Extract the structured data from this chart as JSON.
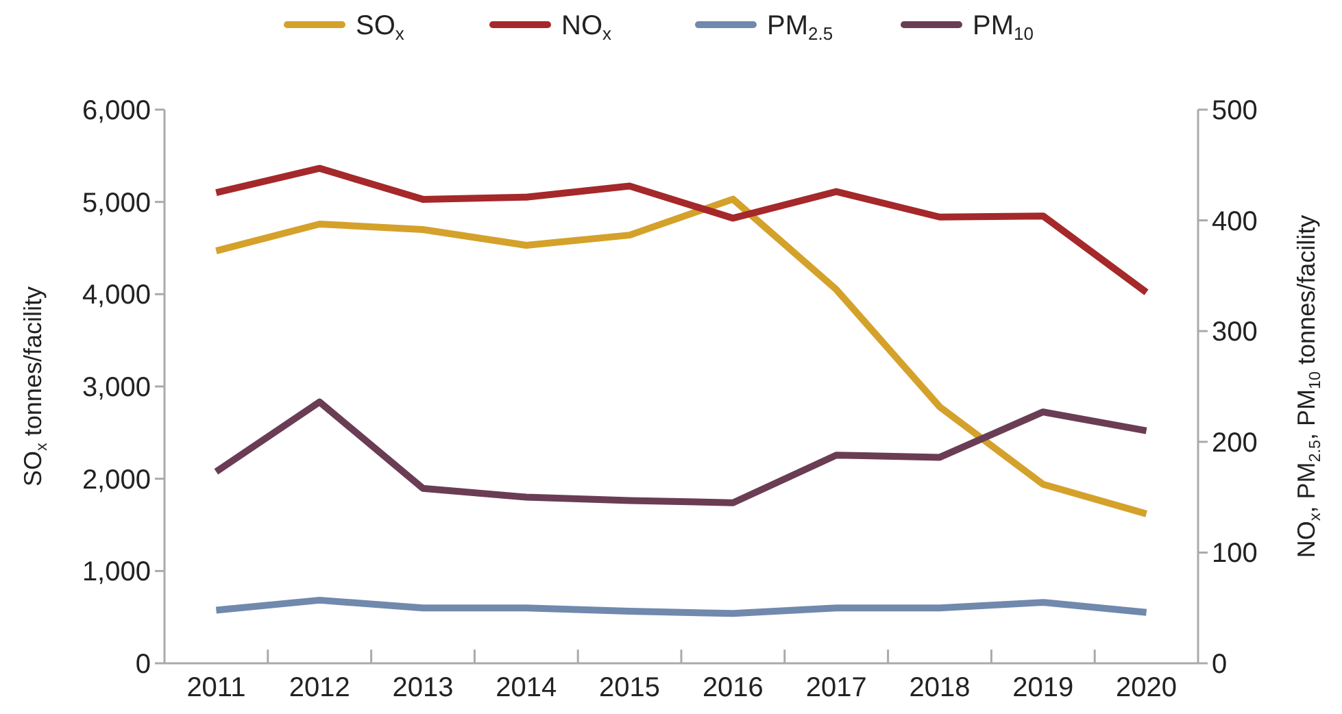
{
  "chart_data": {
    "type": "line",
    "categories": [
      "2011",
      "2012",
      "2013",
      "2014",
      "2015",
      "2016",
      "2017",
      "2018",
      "2019",
      "2020"
    ],
    "ylabel": "SO$_{x}$ tonnes/facility",
    "y2label": "NO$_{x}$, PM$_{2.5}$, PM$_{10}$ tonnes/facility",
    "ylim": [
      0,
      6000
    ],
    "yticks": [
      {
        "value": 0,
        "label": "0"
      },
      {
        "value": 1000,
        "label": "1,000"
      },
      {
        "value": 2000,
        "label": "2,000"
      },
      {
        "value": 3000,
        "label": "3,000"
      },
      {
        "value": 4000,
        "label": "4,000"
      },
      {
        "value": 5000,
        "label": "5,000"
      },
      {
        "value": 6000,
        "label": "6,000"
      }
    ],
    "y2lim": [
      0,
      500
    ],
    "y2ticks": [
      0,
      100,
      200,
      300,
      400,
      500
    ],
    "legend": "top",
    "grid": false,
    "marker": "none",
    "line_style": "solid",
    "series": [
      {
        "name": "SO$_{x}$",
        "color": "#d4a12a",
        "values": [
          4470,
          4760,
          4700,
          4530,
          4640,
          5030,
          4050,
          2780,
          1940,
          1620
        ]
      },
      {
        "name": "NO$_{x}$",
        "color": "#a5282a",
        "axis": "y2",
        "values": [
          425,
          447,
          419,
          421,
          431,
          402,
          426,
          403,
          404,
          335
        ]
      },
      {
        "name": "PM$_{2.5}$",
        "color": "#7089ad",
        "axis": "y2",
        "values": [
          48,
          57,
          50,
          50,
          47,
          45,
          50,
          50,
          55,
          46
        ]
      },
      {
        "name": "PM$_{10}$",
        "color": "#6a3d54",
        "axis": "y2",
        "values": [
          173,
          236,
          158,
          150,
          147,
          145,
          188,
          186,
          227,
          210
        ]
      }
    ]
  }
}
